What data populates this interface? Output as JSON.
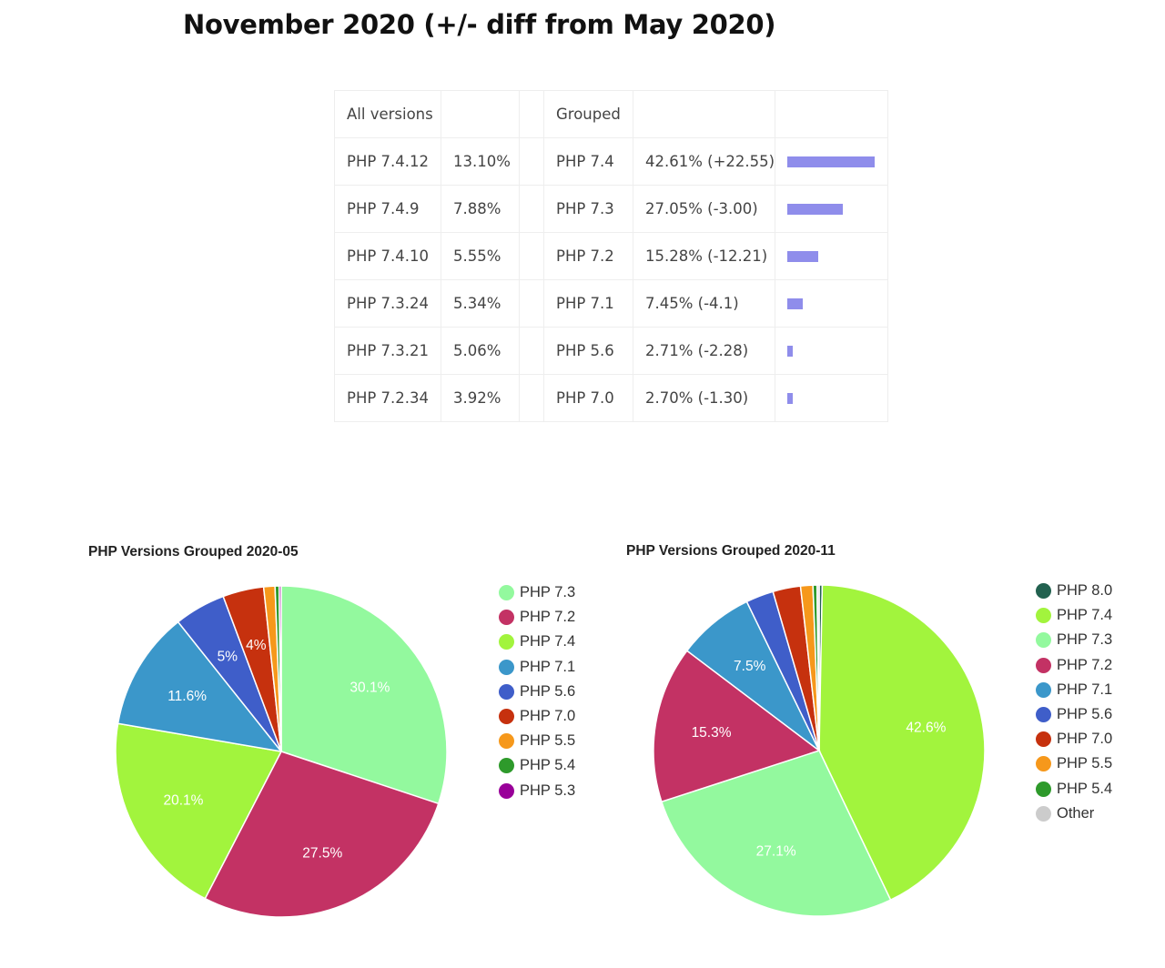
{
  "page": {
    "title": "November 2020 (+/- diff from May 2020)"
  },
  "table": {
    "header_all": "All versions",
    "header_grouped": "Grouped",
    "rows": [
      {
        "version": "PHP 7.4.12",
        "share": "13.10%",
        "group": "PHP 7.4",
        "group_share": "42.61% (+22.55)",
        "bar_value": 42.61
      },
      {
        "version": "PHP 7.4.9",
        "share": "7.88%",
        "group": "PHP 7.3",
        "group_share": "27.05% (-3.00)",
        "bar_value": 27.05
      },
      {
        "version": "PHP 7.4.10",
        "share": "5.55%",
        "group": "PHP 7.2",
        "group_share": "15.28% (-12.21)",
        "bar_value": 15.28
      },
      {
        "version": "PHP 7.3.24",
        "share": "5.34%",
        "group": "PHP 7.1",
        "group_share": "7.45% (-4.1)",
        "bar_value": 7.45
      },
      {
        "version": "PHP 7.3.21",
        "share": "5.06%",
        "group": "PHP 5.6",
        "group_share": "2.71% (-2.28)",
        "bar_value": 2.71
      },
      {
        "version": "PHP 7.2.34",
        "share": "3.92%",
        "group": "PHP 7.0",
        "group_share": "2.70% (-1.30)",
        "bar_value": 2.7
      }
    ],
    "bar_color": "#8f8deb",
    "bar_max": 42.61
  },
  "chart_data": [
    {
      "type": "pie",
      "title": "PHP Versions Grouped 2020-05",
      "legend_position": "right",
      "slices": [
        {
          "label": "PHP 7.3",
          "value": 30.1,
          "color": "#93f99e",
          "data_label": "30.1%"
        },
        {
          "label": "PHP 7.2",
          "value": 27.5,
          "color": "#c33264",
          "data_label": "27.5%"
        },
        {
          "label": "PHP 7.4",
          "value": 20.1,
          "color": "#a2f43d",
          "data_label": "20.1%"
        },
        {
          "label": "PHP 7.1",
          "value": 11.6,
          "color": "#3b97ca",
          "data_label": "11.6%"
        },
        {
          "label": "PHP 5.6",
          "value": 5.0,
          "color": "#3f5ec9",
          "data_label": "5%"
        },
        {
          "label": "PHP 7.0",
          "value": 4.0,
          "color": "#c6310e",
          "data_label": "4%"
        },
        {
          "label": "PHP 5.5",
          "value": 1.1,
          "color": "#f6981b",
          "data_label": ""
        },
        {
          "label": "PHP 5.4",
          "value": 0.4,
          "color": "#2e9a2b",
          "data_label": ""
        },
        {
          "label": "PHP 5.3",
          "value": 0.2,
          "color": "#990099",
          "data_label": ""
        }
      ]
    },
    {
      "type": "pie",
      "title": "PHP Versions Grouped 2020-11",
      "legend_position": "right",
      "slices": [
        {
          "label": "PHP 8.0",
          "value": 0.3,
          "color": "#22614f",
          "data_label": ""
        },
        {
          "label": "PHP 7.4",
          "value": 42.6,
          "color": "#a2f43d",
          "data_label": "42.6%"
        },
        {
          "label": "PHP 7.3",
          "value": 27.1,
          "color": "#93f99e",
          "data_label": "27.1%"
        },
        {
          "label": "PHP 7.2",
          "value": 15.3,
          "color": "#c33264",
          "data_label": "15.3%"
        },
        {
          "label": "PHP 7.1",
          "value": 7.5,
          "color": "#3b97ca",
          "data_label": "7.5%"
        },
        {
          "label": "PHP 5.6",
          "value": 2.7,
          "color": "#3f5ec9",
          "data_label": ""
        },
        {
          "label": "PHP 7.0",
          "value": 2.7,
          "color": "#c6310e",
          "data_label": ""
        },
        {
          "label": "PHP 5.5",
          "value": 1.2,
          "color": "#f6981b",
          "data_label": ""
        },
        {
          "label": "PHP 5.4",
          "value": 0.4,
          "color": "#2e9a2b",
          "data_label": ""
        },
        {
          "label": "Other",
          "value": 0.2,
          "color": "#cccccc",
          "data_label": ""
        }
      ]
    }
  ]
}
